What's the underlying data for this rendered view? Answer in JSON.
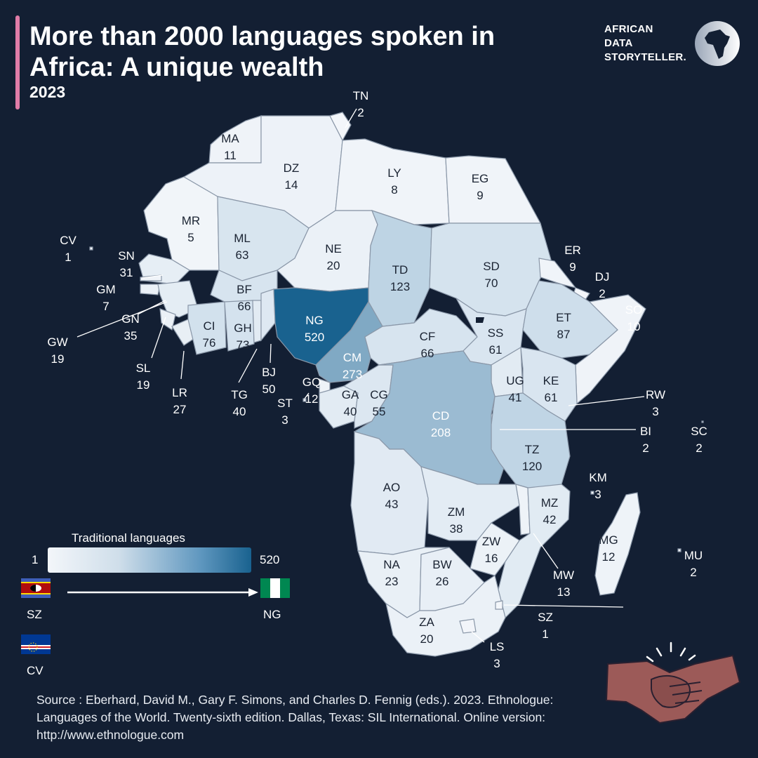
{
  "header": {
    "title": "More than 2000 languages spoken in Africa: A unique wealth",
    "subtitle": "2023",
    "brand_lines": [
      "AFRICAN",
      "DATA",
      "STORYTELLER."
    ]
  },
  "legend": {
    "title": "Traditional languages",
    "min_label": "1",
    "max_label": "520",
    "min_value": 1,
    "max_value": 520,
    "color_low": "#f3f6fa",
    "color_high": "#19628f"
  },
  "flags": {
    "min_country": "SZ",
    "max_country": "NG",
    "extra_country": "CV"
  },
  "countries": [
    {
      "code": "TN",
      "value": 2
    },
    {
      "code": "MA",
      "value": 11
    },
    {
      "code": "DZ",
      "value": 14
    },
    {
      "code": "LY",
      "value": 8
    },
    {
      "code": "EG",
      "value": 9
    },
    {
      "code": "MR",
      "value": 5
    },
    {
      "code": "ML",
      "value": 63
    },
    {
      "code": "NE",
      "value": 20
    },
    {
      "code": "TD",
      "value": 123
    },
    {
      "code": "SD",
      "value": 70
    },
    {
      "code": "CV",
      "value": 1
    },
    {
      "code": "SN",
      "value": 31
    },
    {
      "code": "GM",
      "value": 7
    },
    {
      "code": "GN",
      "value": 35
    },
    {
      "code": "GW",
      "value": 19
    },
    {
      "code": "BF",
      "value": 66
    },
    {
      "code": "CI",
      "value": 76
    },
    {
      "code": "GH",
      "value": 73
    },
    {
      "code": "NG",
      "value": 520
    },
    {
      "code": "ER",
      "value": 9
    },
    {
      "code": "DJ",
      "value": 2
    },
    {
      "code": "SO",
      "value": 10
    },
    {
      "code": "ET",
      "value": 87
    },
    {
      "code": "SS",
      "value": 61
    },
    {
      "code": "CF",
      "value": 66
    },
    {
      "code": "CM",
      "value": 273
    },
    {
      "code": "SL",
      "value": 19
    },
    {
      "code": "LR",
      "value": 27
    },
    {
      "code": "TG",
      "value": 40
    },
    {
      "code": "BJ",
      "value": 50
    },
    {
      "code": "GQ",
      "value": 12
    },
    {
      "code": "ST",
      "value": 3
    },
    {
      "code": "GA",
      "value": 40
    },
    {
      "code": "CG",
      "value": 55
    },
    {
      "code": "CD",
      "value": 208
    },
    {
      "code": "UG",
      "value": 41
    },
    {
      "code": "KE",
      "value": 61
    },
    {
      "code": "RW",
      "value": 3
    },
    {
      "code": "BI",
      "value": 2
    },
    {
      "code": "SC",
      "value": 2
    },
    {
      "code": "TZ",
      "value": 120
    },
    {
      "code": "KM",
      "value": 3
    },
    {
      "code": "AO",
      "value": 43
    },
    {
      "code": "ZM",
      "value": 38
    },
    {
      "code": "MZ",
      "value": 42
    },
    {
      "code": "ZW",
      "value": 16
    },
    {
      "code": "MG",
      "value": 12
    },
    {
      "code": "MU",
      "value": 2
    },
    {
      "code": "NA",
      "value": 23
    },
    {
      "code": "BW",
      "value": 26
    },
    {
      "code": "MW",
      "value": 13
    },
    {
      "code": "SZ",
      "value": 1
    },
    {
      "code": "ZA",
      "value": 20
    },
    {
      "code": "LS",
      "value": 3
    }
  ],
  "source": "Source : Eberhard, David M., Gary F. Simons, and Charles D. Fennig (eds.). 2023. Ethnologue: Languages of the World. Twenty-sixth edition. Dallas, Texas: SIL International. Online version: http://www.ethnologue.com"
}
